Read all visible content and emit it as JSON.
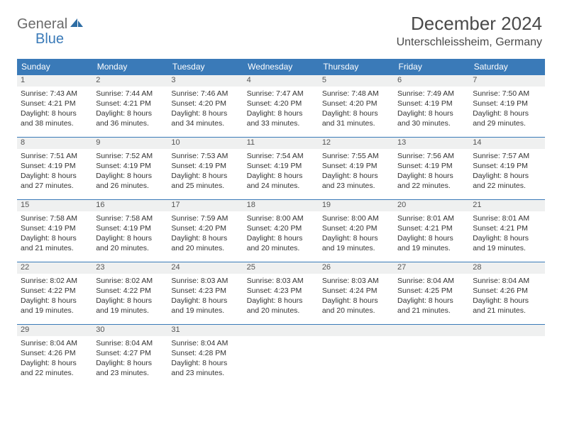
{
  "logo": {
    "word1": "General",
    "word2": "Blue"
  },
  "title": "December 2024",
  "location": "Unterschleissheim, Germany",
  "colors": {
    "header_bg": "#3a7ab8",
    "header_fg": "#ffffff",
    "daynum_bg": "#eff0f0",
    "border": "#3a7ab8",
    "text": "#333333",
    "logo_gray": "#6b6b6b",
    "logo_blue": "#3a7ab8"
  },
  "column_count": 7,
  "weekdays": [
    "Sunday",
    "Monday",
    "Tuesday",
    "Wednesday",
    "Thursday",
    "Friday",
    "Saturday"
  ],
  "weeks": [
    [
      {
        "day": "1",
        "sunrise": "Sunrise: 7:43 AM",
        "sunset": "Sunset: 4:21 PM",
        "daylight1": "Daylight: 8 hours",
        "daylight2": "and 38 minutes."
      },
      {
        "day": "2",
        "sunrise": "Sunrise: 7:44 AM",
        "sunset": "Sunset: 4:21 PM",
        "daylight1": "Daylight: 8 hours",
        "daylight2": "and 36 minutes."
      },
      {
        "day": "3",
        "sunrise": "Sunrise: 7:46 AM",
        "sunset": "Sunset: 4:20 PM",
        "daylight1": "Daylight: 8 hours",
        "daylight2": "and 34 minutes."
      },
      {
        "day": "4",
        "sunrise": "Sunrise: 7:47 AM",
        "sunset": "Sunset: 4:20 PM",
        "daylight1": "Daylight: 8 hours",
        "daylight2": "and 33 minutes."
      },
      {
        "day": "5",
        "sunrise": "Sunrise: 7:48 AM",
        "sunset": "Sunset: 4:20 PM",
        "daylight1": "Daylight: 8 hours",
        "daylight2": "and 31 minutes."
      },
      {
        "day": "6",
        "sunrise": "Sunrise: 7:49 AM",
        "sunset": "Sunset: 4:19 PM",
        "daylight1": "Daylight: 8 hours",
        "daylight2": "and 30 minutes."
      },
      {
        "day": "7",
        "sunrise": "Sunrise: 7:50 AM",
        "sunset": "Sunset: 4:19 PM",
        "daylight1": "Daylight: 8 hours",
        "daylight2": "and 29 minutes."
      }
    ],
    [
      {
        "day": "8",
        "sunrise": "Sunrise: 7:51 AM",
        "sunset": "Sunset: 4:19 PM",
        "daylight1": "Daylight: 8 hours",
        "daylight2": "and 27 minutes."
      },
      {
        "day": "9",
        "sunrise": "Sunrise: 7:52 AM",
        "sunset": "Sunset: 4:19 PM",
        "daylight1": "Daylight: 8 hours",
        "daylight2": "and 26 minutes."
      },
      {
        "day": "10",
        "sunrise": "Sunrise: 7:53 AM",
        "sunset": "Sunset: 4:19 PM",
        "daylight1": "Daylight: 8 hours",
        "daylight2": "and 25 minutes."
      },
      {
        "day": "11",
        "sunrise": "Sunrise: 7:54 AM",
        "sunset": "Sunset: 4:19 PM",
        "daylight1": "Daylight: 8 hours",
        "daylight2": "and 24 minutes."
      },
      {
        "day": "12",
        "sunrise": "Sunrise: 7:55 AM",
        "sunset": "Sunset: 4:19 PM",
        "daylight1": "Daylight: 8 hours",
        "daylight2": "and 23 minutes."
      },
      {
        "day": "13",
        "sunrise": "Sunrise: 7:56 AM",
        "sunset": "Sunset: 4:19 PM",
        "daylight1": "Daylight: 8 hours",
        "daylight2": "and 22 minutes."
      },
      {
        "day": "14",
        "sunrise": "Sunrise: 7:57 AM",
        "sunset": "Sunset: 4:19 PM",
        "daylight1": "Daylight: 8 hours",
        "daylight2": "and 22 minutes."
      }
    ],
    [
      {
        "day": "15",
        "sunrise": "Sunrise: 7:58 AM",
        "sunset": "Sunset: 4:19 PM",
        "daylight1": "Daylight: 8 hours",
        "daylight2": "and 21 minutes."
      },
      {
        "day": "16",
        "sunrise": "Sunrise: 7:58 AM",
        "sunset": "Sunset: 4:19 PM",
        "daylight1": "Daylight: 8 hours",
        "daylight2": "and 20 minutes."
      },
      {
        "day": "17",
        "sunrise": "Sunrise: 7:59 AM",
        "sunset": "Sunset: 4:20 PM",
        "daylight1": "Daylight: 8 hours",
        "daylight2": "and 20 minutes."
      },
      {
        "day": "18",
        "sunrise": "Sunrise: 8:00 AM",
        "sunset": "Sunset: 4:20 PM",
        "daylight1": "Daylight: 8 hours",
        "daylight2": "and 20 minutes."
      },
      {
        "day": "19",
        "sunrise": "Sunrise: 8:00 AM",
        "sunset": "Sunset: 4:20 PM",
        "daylight1": "Daylight: 8 hours",
        "daylight2": "and 19 minutes."
      },
      {
        "day": "20",
        "sunrise": "Sunrise: 8:01 AM",
        "sunset": "Sunset: 4:21 PM",
        "daylight1": "Daylight: 8 hours",
        "daylight2": "and 19 minutes."
      },
      {
        "day": "21",
        "sunrise": "Sunrise: 8:01 AM",
        "sunset": "Sunset: 4:21 PM",
        "daylight1": "Daylight: 8 hours",
        "daylight2": "and 19 minutes."
      }
    ],
    [
      {
        "day": "22",
        "sunrise": "Sunrise: 8:02 AM",
        "sunset": "Sunset: 4:22 PM",
        "daylight1": "Daylight: 8 hours",
        "daylight2": "and 19 minutes."
      },
      {
        "day": "23",
        "sunrise": "Sunrise: 8:02 AM",
        "sunset": "Sunset: 4:22 PM",
        "daylight1": "Daylight: 8 hours",
        "daylight2": "and 19 minutes."
      },
      {
        "day": "24",
        "sunrise": "Sunrise: 8:03 AM",
        "sunset": "Sunset: 4:23 PM",
        "daylight1": "Daylight: 8 hours",
        "daylight2": "and 19 minutes."
      },
      {
        "day": "25",
        "sunrise": "Sunrise: 8:03 AM",
        "sunset": "Sunset: 4:23 PM",
        "daylight1": "Daylight: 8 hours",
        "daylight2": "and 20 minutes."
      },
      {
        "day": "26",
        "sunrise": "Sunrise: 8:03 AM",
        "sunset": "Sunset: 4:24 PM",
        "daylight1": "Daylight: 8 hours",
        "daylight2": "and 20 minutes."
      },
      {
        "day": "27",
        "sunrise": "Sunrise: 8:04 AM",
        "sunset": "Sunset: 4:25 PM",
        "daylight1": "Daylight: 8 hours",
        "daylight2": "and 21 minutes."
      },
      {
        "day": "28",
        "sunrise": "Sunrise: 8:04 AM",
        "sunset": "Sunset: 4:26 PM",
        "daylight1": "Daylight: 8 hours",
        "daylight2": "and 21 minutes."
      }
    ],
    [
      {
        "day": "29",
        "sunrise": "Sunrise: 8:04 AM",
        "sunset": "Sunset: 4:26 PM",
        "daylight1": "Daylight: 8 hours",
        "daylight2": "and 22 minutes."
      },
      {
        "day": "30",
        "sunrise": "Sunrise: 8:04 AM",
        "sunset": "Sunset: 4:27 PM",
        "daylight1": "Daylight: 8 hours",
        "daylight2": "and 23 minutes."
      },
      {
        "day": "31",
        "sunrise": "Sunrise: 8:04 AM",
        "sunset": "Sunset: 4:28 PM",
        "daylight1": "Daylight: 8 hours",
        "daylight2": "and 23 minutes."
      },
      {
        "empty": true
      },
      {
        "empty": true
      },
      {
        "empty": true
      },
      {
        "empty": true
      }
    ]
  ]
}
